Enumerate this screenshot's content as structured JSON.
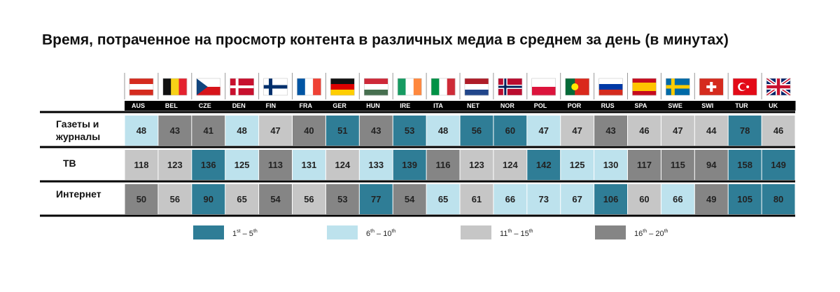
{
  "title": "Время, потраченное на просмотр контента в различных медиа в среднем за день (в минутах)",
  "countries": [
    "AUS",
    "BEL",
    "CZE",
    "DEN",
    "FIN",
    "FRA",
    "GER",
    "HUN",
    "IRE",
    "ITA",
    "NET",
    "NOR",
    "POL",
    "POR",
    "RUS",
    "SPA",
    "SWE",
    "SWI",
    "TUR",
    "UK"
  ],
  "rows": [
    {
      "label": "Газеты и журналы",
      "values": [
        48,
        43,
        41,
        48,
        47,
        40,
        51,
        43,
        53,
        48,
        56,
        60,
        47,
        47,
        43,
        46,
        47,
        44,
        78,
        46
      ],
      "colors": [
        "#bde2ed",
        "#858585",
        "#858585",
        "#bde2ed",
        "#c6c6c6",
        "#858585",
        "#2f7d96",
        "#858585",
        "#2f7d96",
        "#bde2ed",
        "#2f7d96",
        "#2f7d96",
        "#bde2ed",
        "#c6c6c6",
        "#858585",
        "#c6c6c6",
        "#c6c6c6",
        "#c6c6c6",
        "#2f7d96",
        "#c6c6c6"
      ]
    },
    {
      "label": "ТВ",
      "values": [
        118,
        123,
        136,
        125,
        113,
        131,
        124,
        133,
        139,
        116,
        123,
        124,
        142,
        125,
        130,
        117,
        115,
        94,
        158,
        149
      ],
      "colors": [
        "#c6c6c6",
        "#c6c6c6",
        "#2f7d96",
        "#bde2ed",
        "#858585",
        "#bde2ed",
        "#c6c6c6",
        "#bde2ed",
        "#2f7d96",
        "#858585",
        "#c6c6c6",
        "#c6c6c6",
        "#2f7d96",
        "#bde2ed",
        "#bde2ed",
        "#858585",
        "#858585",
        "#858585",
        "#2f7d96",
        "#2f7d96"
      ]
    },
    {
      "label": "Интернет",
      "values": [
        50,
        56,
        90,
        65,
        54,
        56,
        53,
        77,
        54,
        65,
        61,
        66,
        73,
        67,
        106,
        60,
        66,
        49,
        105,
        80
      ],
      "colors": [
        "#858585",
        "#c6c6c6",
        "#2f7d96",
        "#c6c6c6",
        "#858585",
        "#c6c6c6",
        "#858585",
        "#2f7d96",
        "#858585",
        "#bde2ed",
        "#c6c6c6",
        "#bde2ed",
        "#bde2ed",
        "#bde2ed",
        "#2f7d96",
        "#c6c6c6",
        "#bde2ed",
        "#858585",
        "#2f7d96",
        "#2f7d96"
      ]
    }
  ],
  "legend": [
    {
      "color": "#2f7d96",
      "label": [
        "1",
        "st",
        " – 5",
        "th"
      ]
    },
    {
      "color": "#bde2ed",
      "label": [
        "6",
        "th",
        " – 10",
        "th"
      ]
    },
    {
      "color": "#c6c6c6",
      "label": [
        "11",
        "th",
        " – 15",
        "th"
      ]
    },
    {
      "color": "#858585",
      "label": [
        "16",
        "th",
        " – 20",
        "th"
      ]
    }
  ]
}
